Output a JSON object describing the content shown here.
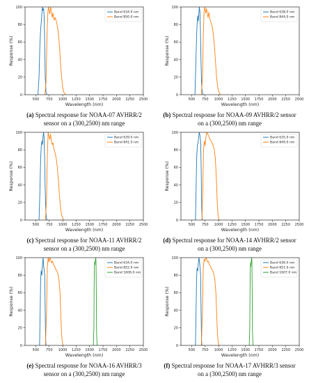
{
  "colors": {
    "band1": "#1f77b4",
    "band2": "#ff7f0e",
    "band3": "#2ca02c",
    "axis": "#000000"
  },
  "chart_data": [
    {
      "type": "line",
      "panel": "a",
      "caption_label": "(a)",
      "caption_line1": " Spectral response for NOAA-07 AVHRR/2",
      "caption_line2": "sensor on a (300,2500) nm range",
      "xlabel": "Wavelength (nm)",
      "ylabel": "Response (%)",
      "xlim": [
        300,
        2500
      ],
      "ylim": [
        0,
        100
      ],
      "xticks": [
        500,
        750,
        1000,
        1250,
        1500,
        1750,
        2000,
        2250,
        2500
      ],
      "yticks": [
        0,
        20,
        40,
        60,
        80,
        100
      ],
      "legend_position": "top-right",
      "grid": false,
      "series": [
        {
          "name": "Band 634.0 nm",
          "color": "band1",
          "x": [
            540,
            560,
            575,
            590,
            605,
            615,
            625,
            635,
            645,
            655,
            665,
            675,
            690,
            705,
            720
          ],
          "y": [
            0,
            20,
            55,
            75,
            85,
            95,
            100,
            96,
            98,
            90,
            60,
            20,
            3,
            0,
            0
          ]
        },
        {
          "name": "Band 850.0 nm",
          "color": "band2",
          "x": [
            670,
            690,
            710,
            725,
            735,
            745,
            760,
            775,
            790,
            805,
            820,
            840,
            860,
            880,
            900,
            920,
            940,
            960,
            980,
            1000,
            1020,
            1040,
            1060
          ],
          "y": [
            0,
            15,
            70,
            95,
            100,
            96,
            92,
            100,
            95,
            88,
            93,
            85,
            88,
            84,
            78,
            70,
            55,
            35,
            20,
            8,
            3,
            1,
            0
          ]
        }
      ]
    },
    {
      "type": "line",
      "panel": "b",
      "caption_label": "(b)",
      "caption_line1": " Spectral response for NOAA-09 AVHRR/2 sensor",
      "caption_line2": "on a (300,2500) nm range",
      "xlabel": "Wavelength (nm)",
      "ylabel": "Response (%)",
      "xlim": [
        300,
        2500
      ],
      "ylim": [
        0,
        100
      ],
      "xticks": [
        500,
        750,
        1000,
        1250,
        1500,
        1750,
        2000,
        2250,
        2500
      ],
      "yticks": [
        0,
        20,
        40,
        60,
        80,
        100
      ],
      "legend_position": "top-right",
      "grid": false,
      "series": [
        {
          "name": "Band 638.0 nm",
          "color": "band1",
          "x": [
            560,
            575,
            590,
            600,
            612,
            622,
            632,
            642,
            652,
            662,
            672,
            685,
            700,
            715
          ],
          "y": [
            0,
            30,
            65,
            80,
            90,
            84,
            92,
            100,
            95,
            75,
            40,
            10,
            2,
            0
          ]
        },
        {
          "name": "Band 844.0 nm",
          "color": "band2",
          "x": [
            680,
            700,
            715,
            730,
            745,
            760,
            775,
            790,
            805,
            820,
            840,
            860,
            880,
            900,
            920,
            940,
            960,
            980,
            1000,
            1020,
            1040
          ],
          "y": [
            0,
            20,
            65,
            95,
            100,
            93,
            98,
            92,
            88,
            94,
            86,
            82,
            78,
            70,
            58,
            40,
            22,
            10,
            4,
            1,
            0
          ]
        }
      ]
    },
    {
      "type": "line",
      "panel": "c",
      "caption_label": "(c)",
      "caption_line1": " Spectral response for NOAA-11 AVHRR/2",
      "caption_line2": "sensor on a (300,2500) nm range",
      "xlabel": "Wavelength (nm)",
      "ylabel": "Response (%)",
      "xlim": [
        300,
        2500
      ],
      "ylim": [
        0,
        100
      ],
      "xticks": [
        500,
        750,
        1000,
        1250,
        1500,
        1750,
        2000,
        2250,
        2500
      ],
      "yticks": [
        0,
        20,
        40,
        60,
        80,
        100
      ],
      "legend_position": "top-right",
      "grid": false,
      "series": [
        {
          "name": "Band 639.0 nm",
          "color": "band1",
          "x": [
            560,
            575,
            590,
            602,
            614,
            624,
            634,
            644,
            654,
            664,
            674,
            688,
            702,
            715
          ],
          "y": [
            0,
            30,
            70,
            85,
            90,
            86,
            95,
            100,
            94,
            70,
            35,
            8,
            1,
            0
          ]
        },
        {
          "name": "Band 841.0 nm",
          "color": "band2",
          "x": [
            680,
            700,
            715,
            730,
            745,
            760,
            775,
            790,
            805,
            820,
            840,
            860,
            880,
            900,
            920,
            940,
            960,
            980,
            1000,
            1020
          ],
          "y": [
            0,
            25,
            75,
            100,
            95,
            92,
            98,
            90,
            86,
            88,
            80,
            76,
            70,
            60,
            45,
            28,
            14,
            6,
            2,
            0
          ]
        }
      ]
    },
    {
      "type": "line",
      "panel": "d",
      "caption_label": "(d)",
      "caption_line1": " Spectral response for NOAA-14 AVHRR/2 sensor",
      "caption_line2": "on a (300,2500) nm range",
      "xlabel": "Wavelength (nm)",
      "ylabel": "Response (%)",
      "xlim": [
        300,
        2500
      ],
      "ylim": [
        0,
        100
      ],
      "xticks": [
        500,
        750,
        1000,
        1250,
        1500,
        1750,
        2000,
        2250,
        2500
      ],
      "yticks": [
        0,
        20,
        40,
        60,
        80,
        100
      ],
      "legend_position": "top-right",
      "grid": false,
      "series": [
        {
          "name": "Band 635.0 nm",
          "color": "band1",
          "x": [
            570,
            580,
            592,
            605,
            618,
            630,
            642,
            654,
            666,
            676,
            684,
            692,
            700
          ],
          "y": [
            0,
            30,
            70,
            85,
            88,
            95,
            100,
            96,
            90,
            60,
            20,
            3,
            0
          ]
        },
        {
          "name": "Band 849.0 nm",
          "color": "band2",
          "x": [
            690,
            705,
            720,
            735,
            750,
            765,
            780,
            800,
            820,
            840,
            860,
            880,
            900,
            920,
            940,
            960,
            975,
            990,
            1005,
            1020
          ],
          "y": [
            0,
            30,
            80,
            90,
            85,
            95,
            100,
            98,
            95,
            92,
            90,
            88,
            85,
            80,
            70,
            45,
            20,
            6,
            1,
            0
          ]
        }
      ]
    },
    {
      "type": "line",
      "panel": "e",
      "caption_label": "(e)",
      "caption_line1": " Spectral response for NOAA-16 AVHRR/3",
      "caption_line2": "sensor on a (300,2500) nm range",
      "xlabel": "Wavelength (nm)",
      "ylabel": "Response (%)",
      "xlim": [
        300,
        2500
      ],
      "ylim": [
        0,
        100
      ],
      "xticks": [
        500,
        750,
        1000,
        1250,
        1500,
        1750,
        2000,
        2250,
        2500
      ],
      "yticks": [
        0,
        20,
        40,
        60,
        80,
        100
      ],
      "legend_position": "top-right",
      "grid": false,
      "series": [
        {
          "name": "Band 634.0 nm",
          "color": "band1",
          "x": [
            570,
            580,
            590,
            600,
            612,
            624,
            636,
            646,
            656,
            666,
            674,
            682,
            690
          ],
          "y": [
            0,
            35,
            75,
            85,
            80,
            92,
            100,
            90,
            85,
            80,
            40,
            8,
            0
          ]
        },
        {
          "name": "Band 852.0 nm",
          "color": "band2",
          "x": [
            680,
            700,
            715,
            730,
            745,
            760,
            775,
            790,
            810,
            830,
            850,
            870,
            890,
            910,
            930,
            950,
            965,
            980,
            995,
            1010
          ],
          "y": [
            0,
            40,
            90,
            100,
            95,
            100,
            98,
            94,
            96,
            92,
            90,
            87,
            85,
            82,
            75,
            60,
            35,
            12,
            3,
            0
          ]
        },
        {
          "name": "Band 1606.0 nm",
          "color": "band3",
          "x": [
            1570,
            1580,
            1585,
            1590,
            1595,
            1600,
            1605,
            1610,
            1615,
            1620,
            1625,
            1630,
            1640
          ],
          "y": [
            0,
            20,
            70,
            90,
            95,
            92,
            96,
            98,
            100,
            95,
            60,
            15,
            0
          ]
        }
      ]
    },
    {
      "type": "line",
      "panel": "f",
      "caption_label": "(f)",
      "caption_line1": " Spectral response for NOAA-17 AVHRR/3 sensor",
      "caption_line2": "on a (300,2500) nm range",
      "xlabel": "Wavelength (nm)",
      "ylabel": "Response (%)",
      "xlim": [
        300,
        2500
      ],
      "ylim": [
        0,
        100
      ],
      "xticks": [
        500,
        750,
        1000,
        1250,
        1500,
        1750,
        2000,
        2250,
        2500
      ],
      "yticks": [
        0,
        20,
        40,
        60,
        80,
        100
      ],
      "legend_position": "top-right",
      "grid": false,
      "series": [
        {
          "name": "Band 636.0 nm",
          "color": "band1",
          "x": [
            570,
            580,
            590,
            600,
            612,
            624,
            636,
            646,
            656,
            666,
            674,
            682,
            690
          ],
          "y": [
            0,
            35,
            75,
            88,
            85,
            94,
            100,
            95,
            88,
            80,
            40,
            8,
            0
          ]
        },
        {
          "name": "Band 851.0 nm",
          "color": "band2",
          "x": [
            680,
            700,
            715,
            730,
            745,
            760,
            775,
            790,
            810,
            830,
            850,
            870,
            890,
            910,
            930,
            950,
            965,
            980,
            995,
            1010
          ],
          "y": [
            0,
            40,
            88,
            98,
            96,
            100,
            99,
            95,
            96,
            92,
            90,
            87,
            85,
            82,
            75,
            60,
            35,
            12,
            3,
            0
          ]
        },
        {
          "name": "Band 1607.0 nm",
          "color": "band3",
          "x": [
            1570,
            1580,
            1585,
            1590,
            1595,
            1600,
            1605,
            1610,
            1615,
            1620,
            1625,
            1630,
            1640
          ],
          "y": [
            0,
            20,
            65,
            88,
            94,
            90,
            95,
            97,
            100,
            96,
            60,
            15,
            0
          ]
        }
      ]
    }
  ]
}
